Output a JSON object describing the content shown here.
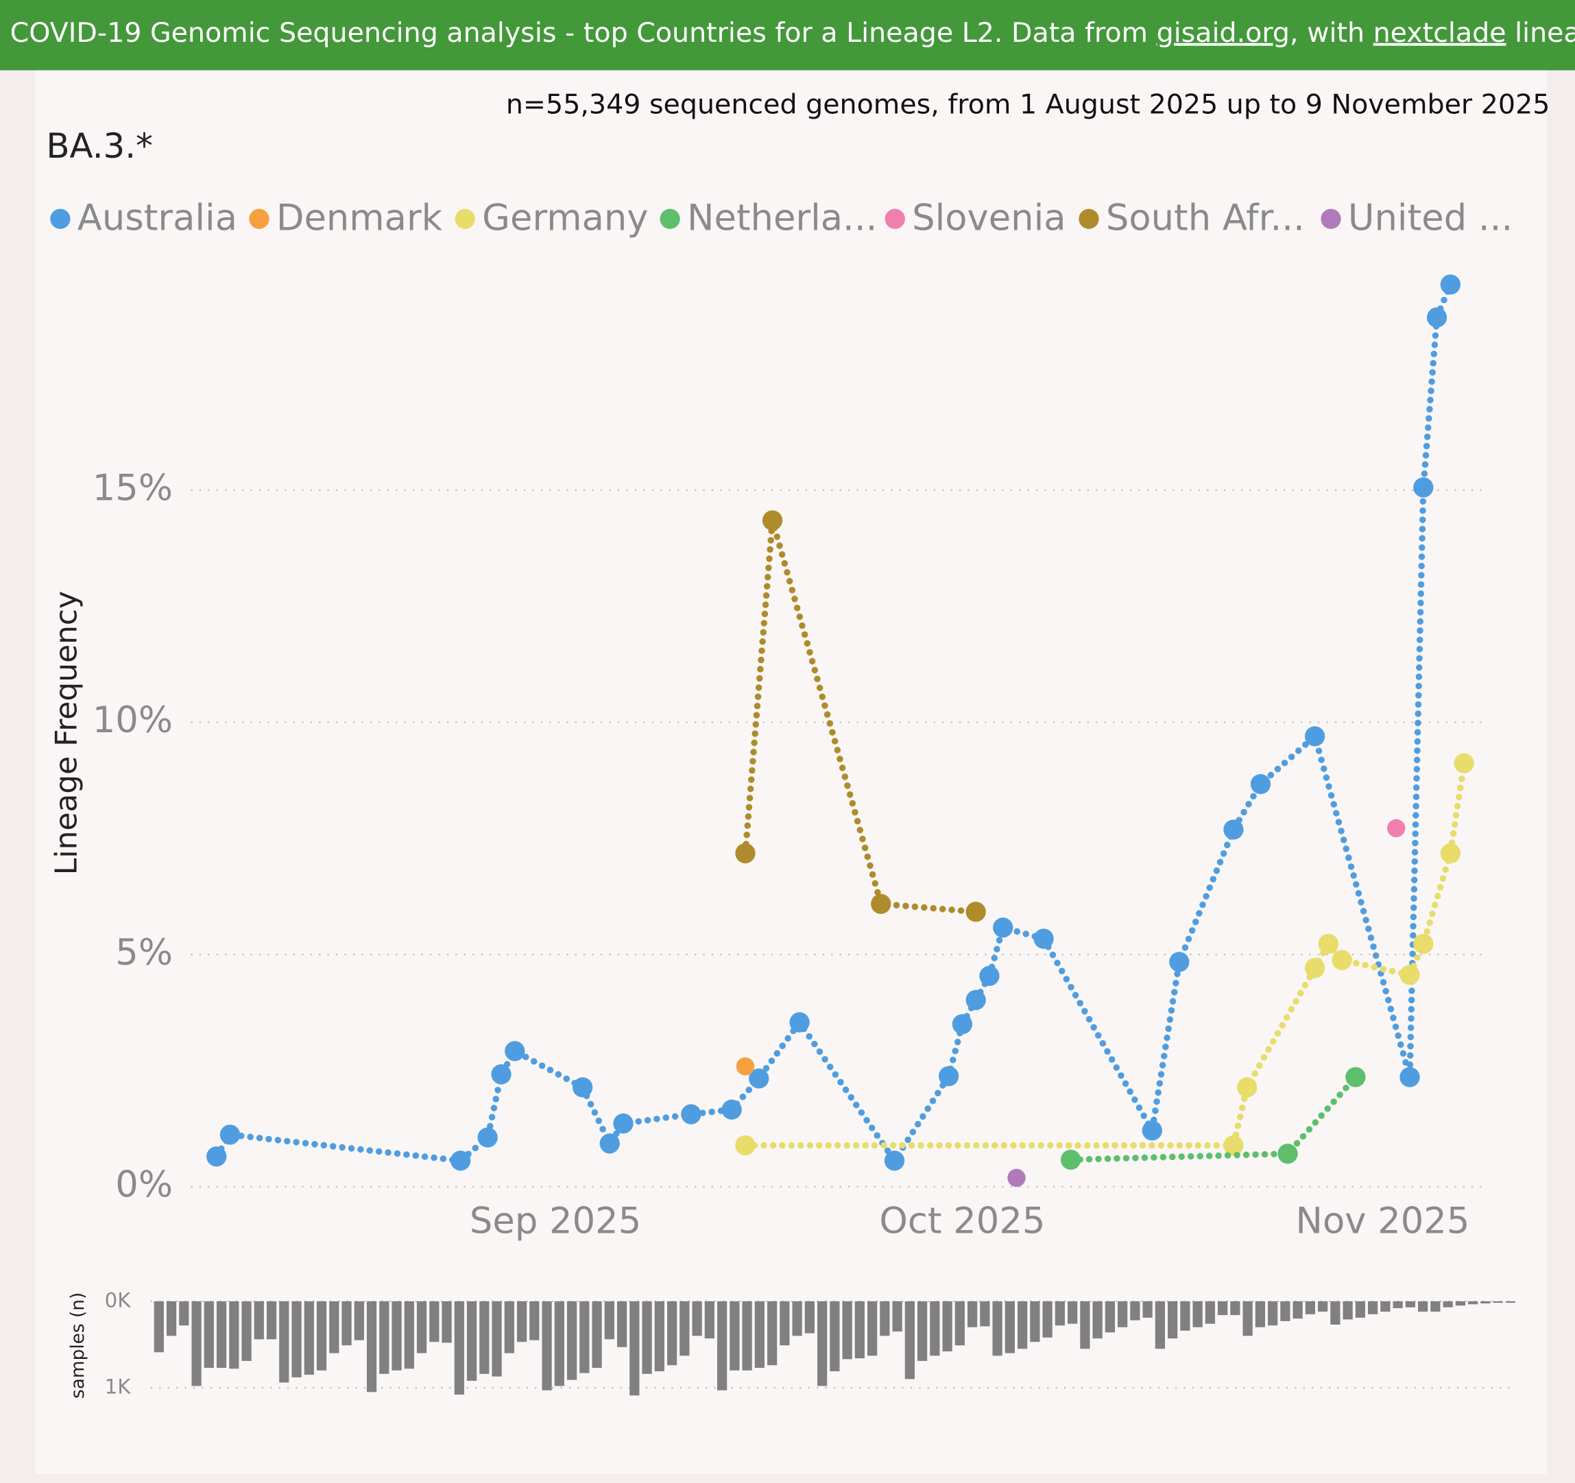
{
  "header": {
    "text": "COVID-19 Genomic Sequencing analysis - top Countries for a Lineage L2. Data from ",
    "link1": "gisaid.org",
    "text2": ", with ",
    "link2": "nextclade",
    "text3": " lineages Sourc"
  },
  "chart_data": [
    {
      "type": "line",
      "title": "BA.3.*",
      "subtitle": "n=55,349 sequenced genomes, from 1 August 2025 up to 9 November 2025",
      "y_label": "Lineage Frequency",
      "xlim": [
        "2025-08-05",
        "2025-11-08"
      ],
      "xticks": [
        {
          "value": "2025-09-01",
          "label": "Sep 2025"
        },
        {
          "value": "2025-10-01",
          "label": "Oct 2025"
        },
        {
          "value": "2025-11-01",
          "label": "Nov 2025"
        }
      ],
      "ylim": [
        -0.5,
        20
      ],
      "yticks": [
        {
          "value": 0,
          "label": "0%"
        },
        {
          "value": 5,
          "label": "5%"
        },
        {
          "value": 10,
          "label": "10%"
        },
        {
          "value": 15,
          "label": "15%"
        }
      ],
      "grid": true,
      "legend": "top-left",
      "series": [
        {
          "name": "Australia",
          "color": "#4f9de0",
          "x": [
            "2025-08-07",
            "2025-08-08",
            "2025-08-25",
            "2025-08-27",
            "2025-08-28",
            "2025-08-29",
            "2025-09-03",
            "2025-09-05",
            "2025-09-06",
            "2025-09-11",
            "2025-09-14",
            "2025-09-16",
            "2025-09-19",
            "2025-09-26",
            "2025-09-30",
            "2025-10-01",
            "2025-10-02",
            "2025-10-03",
            "2025-10-04",
            "2025-10-07",
            "2025-10-15",
            "2025-10-17",
            "2025-10-21",
            "2025-10-23",
            "2025-10-27",
            "2025-11-03",
            "2025-11-04",
            "2025-11-05",
            "2025-11-06"
          ],
          "values": [
            0.65,
            1.12,
            0.56,
            1.06,
            2.42,
            2.92,
            2.14,
            0.93,
            1.36,
            1.56,
            1.66,
            2.33,
            3.54,
            0.56,
            2.38,
            3.5,
            4.02,
            4.54,
            5.58,
            5.34,
            1.21,
            4.84,
            7.69,
            8.67,
            9.7,
            2.36,
            15.06,
            18.72,
            19.43
          ]
        },
        {
          "name": "Denmark",
          "color": "#f7a040",
          "x": [
            "2025-09-15"
          ],
          "values": [
            2.59
          ]
        },
        {
          "name": "Germany",
          "color": "#e8dc6a",
          "x": [
            "2025-09-15",
            "2025-10-21",
            "2025-10-22",
            "2025-10-27",
            "2025-10-28",
            "2025-10-29",
            "2025-11-03",
            "2025-11-04",
            "2025-11-06",
            "2025-11-07"
          ],
          "values": [
            0.89,
            0.89,
            2.14,
            4.71,
            5.23,
            4.88,
            4.56,
            5.23,
            7.18,
            9.12
          ]
        },
        {
          "name": "Netherla...",
          "color": "#5dbf6c",
          "x": [
            "2025-10-09",
            "2025-10-25",
            "2025-10-30"
          ],
          "values": [
            0.58,
            0.71,
            2.36
          ]
        },
        {
          "name": "Slovenia",
          "color": "#ef7fae",
          "x": [
            "2025-11-02"
          ],
          "values": [
            7.72
          ]
        },
        {
          "name": "South Afr...",
          "color": "#ae8b2b",
          "x": [
            "2025-09-15",
            "2025-09-17",
            "2025-09-25",
            "2025-10-02"
          ],
          "values": [
            7.18,
            14.35,
            6.09,
            5.92
          ]
        },
        {
          "name": "United ...",
          "color": "#b07ab8",
          "x": [
            "2025-10-05"
          ],
          "values": [
            0.19
          ]
        }
      ]
    },
    {
      "type": "bar",
      "y_label": "samples (n)",
      "color": "#808080",
      "y_inverted": true,
      "ylim": [
        0,
        1150
      ],
      "yticks": [
        {
          "value": 0,
          "label": "0K"
        },
        {
          "value": 1000,
          "label": "1K"
        }
      ],
      "grid": true,
      "values": [
        590,
        400,
        280,
        980,
        770,
        770,
        780,
        690,
        440,
        440,
        940,
        880,
        850,
        800,
        600,
        510,
        450,
        1050,
        840,
        800,
        780,
        600,
        470,
        480,
        1080,
        920,
        840,
        870,
        600,
        470,
        450,
        1030,
        980,
        910,
        830,
        770,
        440,
        530,
        1090,
        840,
        810,
        740,
        630,
        400,
        430,
        1030,
        800,
        800,
        770,
        740,
        510,
        400,
        370,
        980,
        810,
        670,
        660,
        630,
        400,
        350,
        900,
        690,
        630,
        580,
        510,
        300,
        290,
        630,
        600,
        550,
        470,
        420,
        280,
        260,
        550,
        430,
        360,
        300,
        220,
        190,
        550,
        430,
        340,
        300,
        260,
        160,
        160,
        400,
        300,
        280,
        230,
        200,
        150,
        120,
        270,
        210,
        190,
        150,
        120,
        80,
        70,
        120,
        120,
        70,
        50,
        35,
        25,
        12,
        10
      ]
    }
  ]
}
